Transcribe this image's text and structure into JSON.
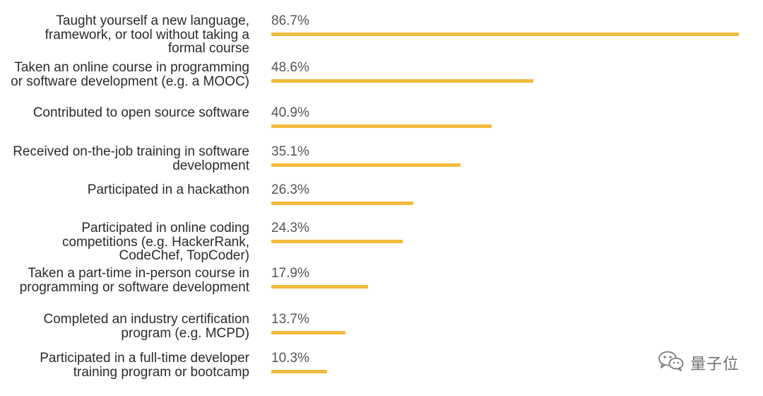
{
  "chart_data": {
    "type": "bar",
    "orientation": "horizontal",
    "categories": [
      "Taught yourself a new language, framework, or tool without taking a formal course",
      "Taken an online course in programming or software development (e.g. a MOOC)",
      "Contributed to open source software",
      "Received on-the-job training in software development",
      "Participated in a hackathon",
      "Participated in online coding competitions (e.g. HackerRank, CodeChef, TopCoder)",
      "Taken a part-time in-person course in programming or software development",
      "Completed an industry certification program (e.g. MCPD)",
      "Participated in a full-time developer training program or bootcamp"
    ],
    "values": [
      86.7,
      48.6,
      40.9,
      35.1,
      26.3,
      24.3,
      17.9,
      13.7,
      10.3
    ],
    "value_labels": [
      "86.7%",
      "48.6%",
      "40.9%",
      "35.1%",
      "26.3%",
      "24.3%",
      "17.9%",
      "13.7%",
      "10.3%"
    ],
    "unit": "%",
    "bar_color": "#F2BA3D",
    "grid": false,
    "axes_visible": false
  },
  "watermark": {
    "text": "量子位",
    "icon": "wechat-icon"
  }
}
